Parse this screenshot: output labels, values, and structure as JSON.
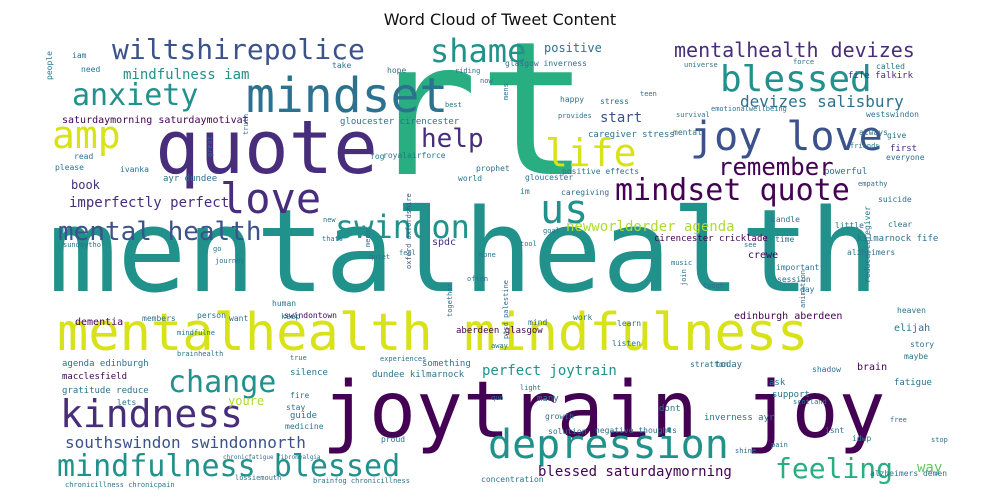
{
  "chart_data": {
    "type": "wordcloud",
    "title": "Word Cloud of Tweet Content",
    "colormap": "viridis",
    "palette": [
      "#440154",
      "#472d7b",
      "#3b528b",
      "#2c728e",
      "#21918c",
      "#28ae80",
      "#5ec962",
      "#addc30",
      "#d8e219",
      "#fde725"
    ],
    "words": [
      {
        "text": "mentalhealth",
        "weight": 1.0
      },
      {
        "text": "rt",
        "weight": 0.98
      },
      {
        "text": "joytrain joy",
        "weight": 0.82
      },
      {
        "text": "quote",
        "weight": 0.75
      },
      {
        "text": "mentalhealth mindfulness",
        "weight": 0.55
      },
      {
        "text": "mindset",
        "weight": 0.5
      },
      {
        "text": "love",
        "weight": 0.42
      },
      {
        "text": "joy love",
        "weight": 0.42
      },
      {
        "text": "depression",
        "weight": 0.4
      },
      {
        "text": "kindness",
        "weight": 0.38
      },
      {
        "text": "blessed",
        "weight": 0.36
      },
      {
        "text": "shame",
        "weight": 0.34
      },
      {
        "text": "us",
        "weight": 0.34
      },
      {
        "text": "amp",
        "weight": 0.34
      },
      {
        "text": "mindfulness blessed",
        "weight": 0.34
      },
      {
        "text": "anxiety",
        "weight": 0.3
      },
      {
        "text": "wiltshirepolice",
        "weight": 0.3
      },
      {
        "text": "life",
        "weight": 0.3
      },
      {
        "text": "swindon",
        "weight": 0.3
      },
      {
        "text": "mindset quote",
        "weight": 0.3
      },
      {
        "text": "change",
        "weight": 0.28
      },
      {
        "text": "feeling",
        "weight": 0.28
      },
      {
        "text": "mental health",
        "weight": 0.26
      },
      {
        "text": "help",
        "weight": 0.26
      },
      {
        "text": "remember",
        "weight": 0.24
      },
      {
        "text": "mentalhealth devizes",
        "weight": 0.2
      },
      {
        "text": "devizes salisbury",
        "weight": 0.16
      },
      {
        "text": "southswindon swindonnorth",
        "weight": 0.15
      },
      {
        "text": "blessed saturdaymorning",
        "weight": 0.14
      },
      {
        "text": "mindfulness iam",
        "weight": 0.14
      },
      {
        "text": "imperfectly perfect",
        "weight": 0.14
      },
      {
        "text": "newworldorder agenda",
        "weight": 0.14
      },
      {
        "text": "perfect joytrain",
        "weight": 0.14
      },
      {
        "text": "positive",
        "weight": 0.12
      },
      {
        "text": "start",
        "weight": 0.12
      },
      {
        "text": "book",
        "weight": 0.12
      },
      {
        "text": "youre",
        "weight": 0.12
      },
      {
        "text": "way",
        "weight": 0.12
      },
      {
        "text": "saturdaymorning saturdaymotivat",
        "weight": 0.1
      },
      {
        "text": "dementia",
        "weight": 0.1
      },
      {
        "text": "spdc",
        "weight": 0.1
      },
      {
        "text": "crewe",
        "weight": 0.1
      },
      {
        "text": "edinburgh aberdeen",
        "weight": 0.1
      },
      {
        "text": "aberdeen glasgow",
        "weight": 0.09
      },
      {
        "text": "brain",
        "weight": 0.1
      },
      {
        "text": "fatigue",
        "weight": 0.09
      },
      {
        "text": "gratitude reduce",
        "weight": 0.09
      },
      {
        "text": "agenda edinburgh",
        "weight": 0.09
      },
      {
        "text": "macclesfield",
        "weight": 0.09
      },
      {
        "text": "elijah",
        "weight": 0.09
      },
      {
        "text": "ayr dundee",
        "weight": 0.09
      },
      {
        "text": "gloucester cirencester",
        "weight": 0.08
      },
      {
        "text": "cirencester cricklade",
        "weight": 0.08
      },
      {
        "text": "kilmarnock fife",
        "weight": 0.08
      },
      {
        "text": "fife falkirk",
        "weight": 0.08
      },
      {
        "text": "inverness ayr",
        "weight": 0.08
      },
      {
        "text": "dundee kilmarnock",
        "weight": 0.08
      },
      {
        "text": "caregiver stress",
        "weight": 0.08
      },
      {
        "text": "reduce caregiver",
        "weight": 0.08
      },
      {
        "text": "glasgow inverness",
        "weight": 0.07
      },
      {
        "text": "positive effects",
        "weight": 0.07
      },
      {
        "text": "royalairforce",
        "weight": 0.07
      },
      {
        "text": "swindontown",
        "weight": 0.07
      },
      {
        "text": "oxford oxfordshire",
        "weight": 0.07
      },
      {
        "text": "powerful",
        "weight": 0.08
      },
      {
        "text": "first",
        "weight": 0.08
      },
      {
        "text": "everyone",
        "weight": 0.07
      },
      {
        "text": "stress",
        "weight": 0.07
      },
      {
        "text": "hope",
        "weight": 0.07
      },
      {
        "text": "happy",
        "weight": 0.07
      },
      {
        "text": "take",
        "weight": 0.07
      },
      {
        "text": "riding",
        "weight": 0.06
      },
      {
        "text": "guide",
        "weight": 0.07
      },
      {
        "text": "silence",
        "weight": 0.07
      },
      {
        "text": "something",
        "weight": 0.07
      },
      {
        "text": "today",
        "weight": 0.07
      },
      {
        "text": "ask",
        "weight": 0.07
      },
      {
        "text": "support",
        "weight": 0.07
      },
      {
        "text": "dont",
        "weight": 0.07
      },
      {
        "text": "many",
        "weight": 0.07
      },
      {
        "text": "growth",
        "weight": 0.06
      },
      {
        "text": "lets",
        "weight": 0.06
      },
      {
        "text": "fire",
        "weight": 0.06
      },
      {
        "text": "stay",
        "weight": 0.06
      },
      {
        "text": "work",
        "weight": 0.06
      },
      {
        "text": "listen",
        "weight": 0.06
      },
      {
        "text": "learn",
        "weight": 0.06
      },
      {
        "text": "world",
        "weight": 0.06
      },
      {
        "text": "mind",
        "weight": 0.06
      },
      {
        "text": "keep",
        "weight": 0.06
      },
      {
        "text": "human",
        "weight": 0.06
      },
      {
        "text": "person",
        "weight": 0.06
      },
      {
        "text": "want",
        "weight": 0.06
      },
      {
        "text": "members",
        "weight": 0.06
      },
      {
        "text": "proud",
        "weight": 0.06
      },
      {
        "text": "concentration",
        "weight": 0.06
      },
      {
        "text": "medicine",
        "weight": 0.06
      },
      {
        "text": "negative thoughts",
        "weight": 0.06
      },
      {
        "text": "solution",
        "weight": 0.06
      },
      {
        "text": "isnt",
        "weight": 0.06
      },
      {
        "text": "idwp",
        "weight": 0.06
      },
      {
        "text": "alzheimers",
        "weight": 0.06
      },
      {
        "text": "alzheimers demen",
        "weight": 0.06
      },
      {
        "text": "heaven",
        "weight": 0.06
      },
      {
        "text": "story",
        "weight": 0.06
      },
      {
        "text": "maybe",
        "weight": 0.06
      },
      {
        "text": "shadow",
        "weight": 0.06
      },
      {
        "text": "stratton",
        "weight": 0.06
      },
      {
        "text": "session",
        "weight": 0.06
      },
      {
        "text": "day",
        "weight": 0.06
      },
      {
        "text": "important",
        "weight": 0.06
      },
      {
        "text": "time",
        "weight": 0.06
      },
      {
        "text": "little",
        "weight": 0.06
      },
      {
        "text": "clear",
        "weight": 0.06
      },
      {
        "text": "suicide",
        "weight": 0.06
      },
      {
        "text": "candle",
        "weight": 0.06
      },
      {
        "text": "empathy",
        "weight": 0.05
      },
      {
        "text": "friends",
        "weight": 0.05
      },
      {
        "text": "give",
        "weight": 0.06
      },
      {
        "text": "always",
        "weight": 0.06
      },
      {
        "text": "called",
        "weight": 0.06
      },
      {
        "text": "westswindon",
        "weight": 0.06
      },
      {
        "text": "emotionalwellbeing",
        "weight": 0.05
      },
      {
        "text": "survival",
        "weight": 0.05
      },
      {
        "text": "mental",
        "weight": 0.06
      },
      {
        "text": "teen",
        "weight": 0.05
      },
      {
        "text": "universe",
        "weight": 0.05
      },
      {
        "text": "force",
        "weight": 0.05
      },
      {
        "text": "provides",
        "weight": 0.05
      },
      {
        "text": "best",
        "weight": 0.05
      },
      {
        "text": "mens",
        "weight": 0.05
      },
      {
        "text": "now",
        "weight": 0.05
      },
      {
        "text": "journey",
        "weight": 0.05
      },
      {
        "text": "prophet",
        "weight": 0.06
      },
      {
        "text": "gloucester",
        "weight": 0.06
      },
      {
        "text": "caregiving",
        "weight": 0.06
      },
      {
        "text": "im",
        "weight": 0.06
      },
      {
        "text": "fog",
        "weight": 0.06
      },
      {
        "text": "great",
        "weight": 0.05
      },
      {
        "text": "truth",
        "weight": 0.05
      },
      {
        "text": "iam",
        "weight": 0.06
      },
      {
        "text": "need",
        "weight": 0.06
      },
      {
        "text": "people",
        "weight": 0.06
      },
      {
        "text": "please",
        "weight": 0.06
      },
      {
        "text": "read",
        "weight": 0.06
      },
      {
        "text": "ivanka",
        "weight": 0.06
      },
      {
        "text": "sundaytho",
        "weight": 0.05
      },
      {
        "text": "new",
        "weight": 0.05
      },
      {
        "text": "thats",
        "weight": 0.05
      },
      {
        "text": "go",
        "weight": 0.05
      },
      {
        "text": "means",
        "weight": 0.05
      },
      {
        "text": "quiet",
        "weight": 0.05
      },
      {
        "text": "feel",
        "weight": 0.05
      },
      {
        "text": "tool",
        "weight": 0.05
      },
      {
        "text": "goal",
        "weight": 0.05
      },
      {
        "text": "ptsd palestine",
        "weight": 0.05
      },
      {
        "text": "none",
        "weight": 0.05
      },
      {
        "text": "often",
        "weight": 0.05
      },
      {
        "text": "together",
        "weight": 0.05
      },
      {
        "text": "music",
        "weight": 0.05
      },
      {
        "text": "join",
        "weight": 0.05
      },
      {
        "text": "tough",
        "weight": 0.05
      },
      {
        "text": "animation",
        "weight": 0.05
      },
      {
        "text": "see",
        "weight": 0.05
      },
      {
        "text": "free",
        "weight": 0.05
      },
      {
        "text": "pain",
        "weight": 0.05
      },
      {
        "text": "stop",
        "weight": 0.05
      },
      {
        "text": "shine",
        "weight": 0.05
      },
      {
        "text": "scotland",
        "weight": 0.05
      },
      {
        "text": "quo",
        "weight": 0.05
      },
      {
        "text": "light",
        "weight": 0.05
      },
      {
        "text": "away",
        "weight": 0.05
      },
      {
        "text": "true",
        "weight": 0.05
      },
      {
        "text": "mindfulne",
        "weight": 0.05
      },
      {
        "text": "brainhealth",
        "weight": 0.05
      },
      {
        "text": "experiences",
        "weight": 0.05
      },
      {
        "text": "chronicillness chronicpain",
        "weight": 0.05
      },
      {
        "text": "lossiemouth",
        "weight": 0.05
      },
      {
        "text": "brainfog chronicillness",
        "weight": 0.05
      },
      {
        "text": "chronicfatigue fibromyalgia",
        "weight": 0.04
      }
    ]
  }
}
